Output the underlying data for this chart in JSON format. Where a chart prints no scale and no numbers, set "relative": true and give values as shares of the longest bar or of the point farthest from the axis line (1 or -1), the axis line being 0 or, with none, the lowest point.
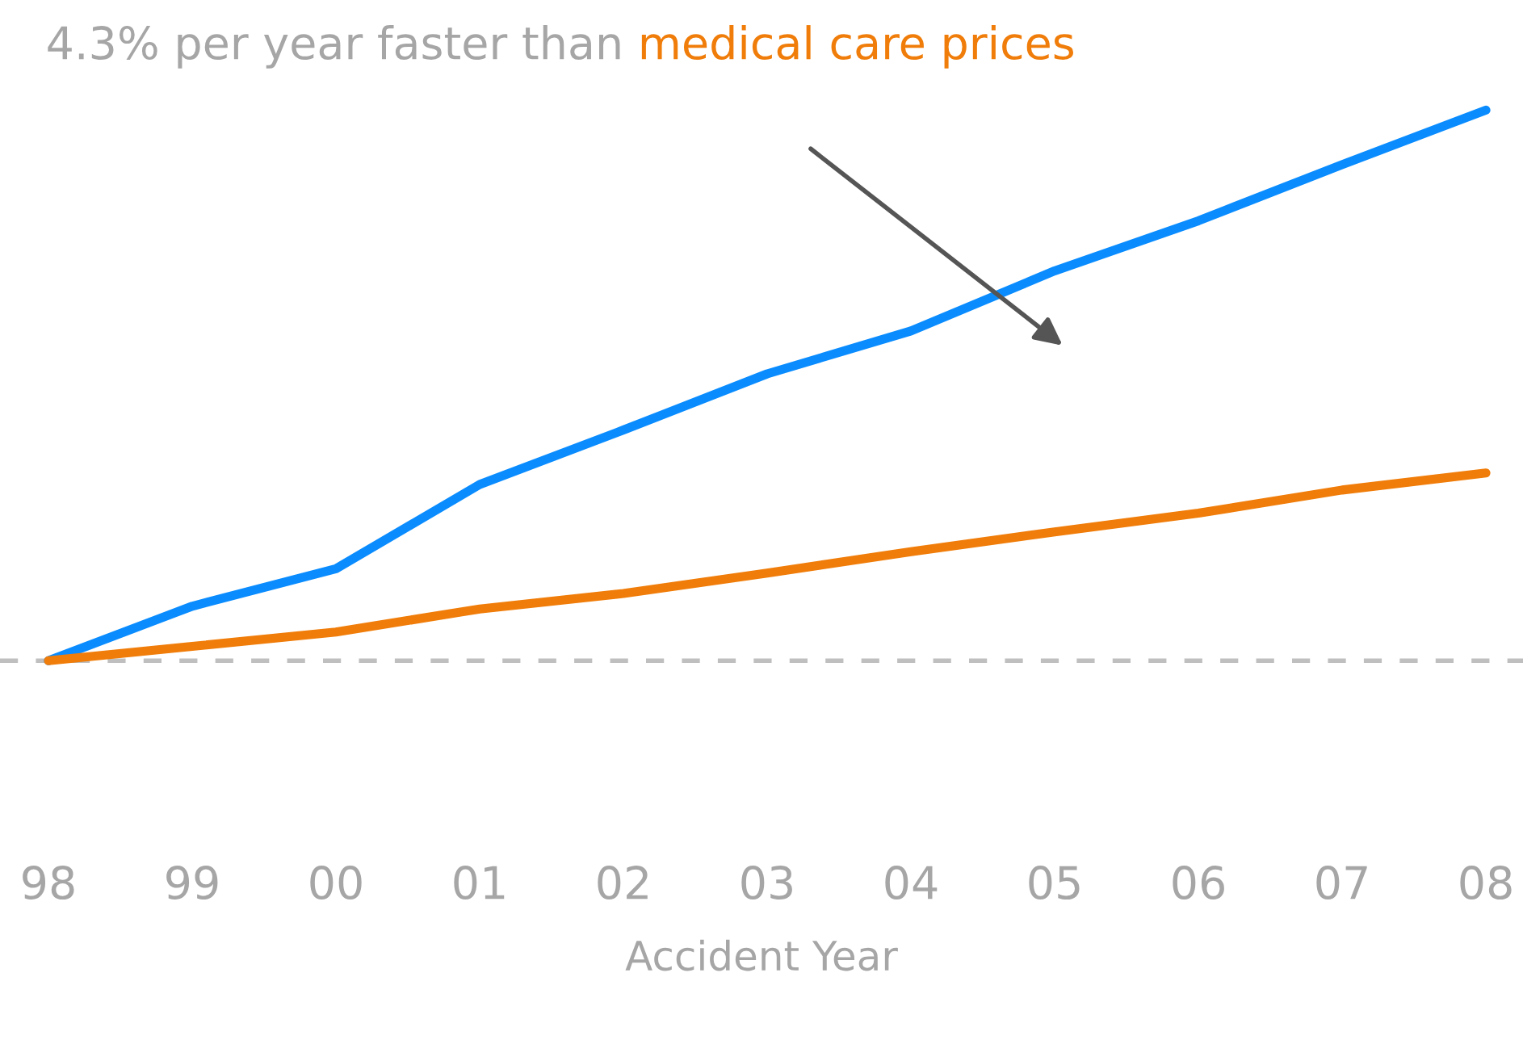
{
  "chart_data": {
    "type": "line",
    "title": "4.3% per year faster than",
    "annotations": [
      "medical care prices"
    ],
    "xlabel": "Accident Year",
    "relative": true,
    "categories": [
      "98",
      "99",
      "00",
      "01",
      "02",
      "03",
      "04",
      "05",
      "06",
      "07",
      "08"
    ],
    "series": [
      {
        "color": "#0a8cff",
        "values": [
          0,
          0.099,
          0.167,
          0.32,
          0.419,
          0.521,
          0.599,
          0.708,
          0.799,
          0.901,
          1
        ]
      },
      {
        "color": "#f07d0a",
        "values": [
          0,
          0.026,
          0.052,
          0.094,
          0.122,
          0.159,
          0.198,
          0.234,
          0.268,
          0.31,
          0.341
        ]
      }
    ],
    "ref_lines": [
      {
        "axis": "y",
        "value": 0,
        "color": "#bfbfbf",
        "line_style": "dashed"
      }
    ],
    "grid": false,
    "legend": false,
    "marker": "none",
    "line_style": "solid"
  }
}
